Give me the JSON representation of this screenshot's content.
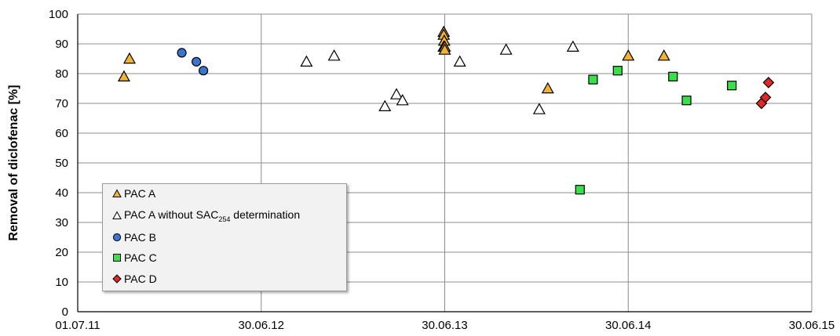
{
  "chart_data": {
    "type": "scatter",
    "title": "",
    "ylabel": "Removal of diclofenac [%]",
    "xlabel": "",
    "x_ticks": [
      "01.07.11",
      "30.06.12",
      "30.06.13",
      "30.06.14",
      "30.06.15"
    ],
    "ylim": [
      0,
      100
    ],
    "y_ticks": [
      0,
      10,
      20,
      30,
      40,
      50,
      60,
      70,
      80,
      90,
      100
    ],
    "grid": true,
    "legend_position": "lower-left",
    "series": [
      {
        "name": "PAC A",
        "marker": "triangle",
        "color": "#f2b233",
        "points": [
          {
            "x": "2011-10-01",
            "y": 79
          },
          {
            "x": "2011-10-12",
            "y": 85
          },
          {
            "x": "2013-06-28",
            "y": 94
          },
          {
            "x": "2013-06-28",
            "y": 93
          },
          {
            "x": "2013-06-29",
            "y": 91
          },
          {
            "x": "2013-06-28",
            "y": 89
          },
          {
            "x": "2013-06-30",
            "y": 89
          },
          {
            "x": "2013-06-30",
            "y": 88
          },
          {
            "x": "2014-01-21",
            "y": 75
          },
          {
            "x": "2014-06-30",
            "y": 86
          },
          {
            "x": "2014-09-09",
            "y": 86
          }
        ]
      },
      {
        "name": "PAC A without SAC254 determination",
        "name_main": "PAC A without SAC",
        "name_sub": "254",
        "name_tail": " determination",
        "marker": "triangle",
        "color": "#ffffff",
        "points": [
          {
            "x": "2012-09-28",
            "y": 84
          },
          {
            "x": "2012-11-22",
            "y": 86
          },
          {
            "x": "2013-03-03",
            "y": 69
          },
          {
            "x": "2013-03-26",
            "y": 73
          },
          {
            "x": "2013-04-07",
            "y": 71
          },
          {
            "x": "2013-07-30",
            "y": 84
          },
          {
            "x": "2013-10-30",
            "y": 88
          },
          {
            "x": "2014-01-04",
            "y": 68
          },
          {
            "x": "2014-03-12",
            "y": 89
          }
        ]
      },
      {
        "name": "PAC B",
        "marker": "circle",
        "color": "#3a76d0",
        "points": [
          {
            "x": "2012-01-24",
            "y": 87
          },
          {
            "x": "2012-02-22",
            "y": 84
          },
          {
            "x": "2012-03-07",
            "y": 81
          }
        ]
      },
      {
        "name": "PAC C",
        "marker": "square",
        "color": "#38e04a",
        "points": [
          {
            "x": "2014-03-26",
            "y": 41
          },
          {
            "x": "2014-04-21",
            "y": 78
          },
          {
            "x": "2014-06-09",
            "y": 81
          },
          {
            "x": "2014-09-27",
            "y": 79
          },
          {
            "x": "2014-10-24",
            "y": 71
          },
          {
            "x": "2015-01-22",
            "y": 76
          }
        ]
      },
      {
        "name": "PAC D",
        "marker": "diamond",
        "color": "#e02828",
        "points": [
          {
            "x": "2015-03-22",
            "y": 70
          },
          {
            "x": "2015-03-30",
            "y": 72
          },
          {
            "x": "2015-04-05",
            "y": 77
          }
        ]
      }
    ]
  }
}
